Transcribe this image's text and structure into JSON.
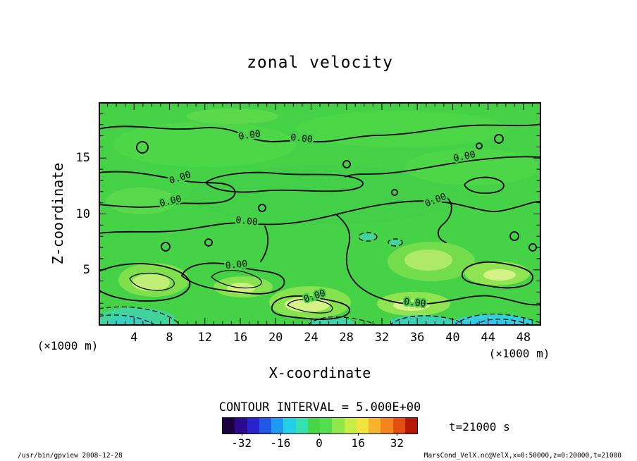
{
  "title": "zonal velocity",
  "axes": {
    "xlabel": "X-coordinate",
    "ylabel": "Z-coordinate",
    "x_unit_left": "(×1000 m)",
    "x_unit_right": "(×1000 m)",
    "x_ticks": [
      "4",
      "8",
      "12",
      "16",
      "20",
      "24",
      "28",
      "32",
      "36",
      "40",
      "44",
      "48"
    ],
    "y_ticks": [
      "5",
      "10",
      "15"
    ]
  },
  "contour_labels": [
    {
      "label": "0.00",
      "x": 17.1,
      "z": 16.8,
      "angle": -8
    },
    {
      "label": "0.00",
      "x": 22.9,
      "z": 16.5,
      "angle": 6
    },
    {
      "label": "0.00",
      "x": 41.4,
      "z": 14.9,
      "angle": -12
    },
    {
      "label": "0.00",
      "x": 9.3,
      "z": 13.0,
      "angle": -18
    },
    {
      "label": "0.00",
      "x": 8.2,
      "z": 10.9,
      "angle": -14
    },
    {
      "label": "0.00",
      "x": 16.7,
      "z": 9.1,
      "angle": 6
    },
    {
      "label": "0.00",
      "x": 38.2,
      "z": 11.0,
      "angle": -22
    },
    {
      "label": "0.00",
      "x": 15.6,
      "z": 5.2,
      "angle": -6
    },
    {
      "label": "0.00",
      "x": 24.5,
      "z": 2.4,
      "angle": -18
    },
    {
      "label": "0.00",
      "x": 35.7,
      "z": 1.8,
      "angle": 6
    }
  ],
  "colorbar": {
    "caption": "CONTOUR INTERVAL = 5.000E+00",
    "range": [
      -40,
      40
    ],
    "tick_values": [
      -32,
      -16,
      0,
      16,
      32
    ],
    "tick_labels": [
      "-32",
      "-16",
      "0",
      "16",
      "32"
    ],
    "colors": [
      "#1c0340",
      "#2d0a8c",
      "#2823cc",
      "#2257e6",
      "#1e9bf0",
      "#22cfe6",
      "#35e0b2",
      "#46d646",
      "#52de4e",
      "#8fe84a",
      "#c6ee44",
      "#f2e43c",
      "#f6b42c",
      "#f1851c",
      "#e34f10",
      "#b51708"
    ]
  },
  "time_label": "t=21000 s",
  "footer": {
    "left": "/usr/bin/gpview  2008-12-28",
    "right": "MarsCond_VelX.nc@VelX,x=0:50000,z=0:20000,t=21000"
  },
  "chart_data": {
    "type": "heatmap",
    "title": "zonal velocity",
    "xlabel": "X-coordinate (×1000 m)",
    "ylabel": "Z-coordinate (×1000 m)",
    "xlim": [
      0,
      50
    ],
    "ylim": [
      0,
      20
    ],
    "x_ticks": [
      4,
      8,
      12,
      16,
      20,
      24,
      28,
      32,
      36,
      40,
      44,
      48
    ],
    "y_ticks": [
      5,
      10,
      15
    ],
    "contour_interval": 5.0,
    "labeled_contour_level": 0.0,
    "colorbar_range": [
      -40,
      40
    ],
    "colorbar_ticks": [
      -32,
      -16,
      0,
      16,
      32
    ],
    "time": "t=21000 s",
    "field_summary": "Zonal velocity is close to 0 everywhere (|u| < 5 over the whole domain, all within the 0-level green band) with meandering 0.00 contour lines. Weak positive anomalies (yellow-green, up to ~+5) form patches near z=2-6 at x=5-8, 13-19, 22-28, 33-38 and 42-48 (×1000 m); weak negative anomalies (cyan, down to ~-5, dashed contours) hug the bottom boundary near x=0-7, 23-28, 33-39 and 41-50."
  }
}
